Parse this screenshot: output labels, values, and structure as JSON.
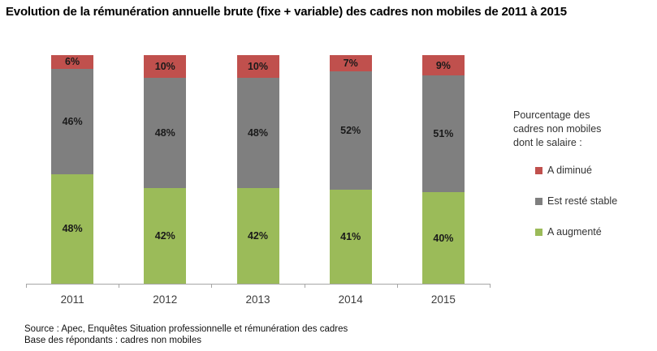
{
  "title": "Evolution de la rémunération annuelle brute (fixe + variable) des cadres non mobiles de 2011 à 2015",
  "chart_data": {
    "type": "bar",
    "stacked": true,
    "title": "Evolution de la rémunération annuelle brute (fixe + variable) des cadres non mobiles de 2011 à 2015",
    "categories": [
      "2011",
      "2012",
      "2013",
      "2014",
      "2015"
    ],
    "series": [
      {
        "name": "A diminué",
        "color": "#c0504d",
        "values": [
          6,
          10,
          10,
          7,
          9
        ]
      },
      {
        "name": "Est resté stable",
        "color": "#7f7f7f",
        "values": [
          46,
          48,
          48,
          52,
          51
        ]
      },
      {
        "name": "A augmenté",
        "color": "#9bbb59",
        "values": [
          48,
          42,
          42,
          41,
          40
        ]
      }
    ],
    "value_suffix": "%",
    "ylim": [
      0,
      100
    ],
    "grid": false,
    "legend_position": "right",
    "axis_color": "#a6a6a6"
  },
  "legend": {
    "title": "Pourcentage des cadres non mobiles dont le salaire :",
    "items": [
      {
        "label": "A diminué",
        "color": "#c0504d"
      },
      {
        "label": "Est resté stable",
        "color": "#7f7f7f"
      },
      {
        "label": "A augmenté",
        "color": "#9bbb59"
      }
    ]
  },
  "footer": {
    "source_line1": "Source : Apec, Enquêtes Situation professionnelle et rémunération des cadres",
    "source_line2": "Base des répondants : cadres non mobiles"
  }
}
